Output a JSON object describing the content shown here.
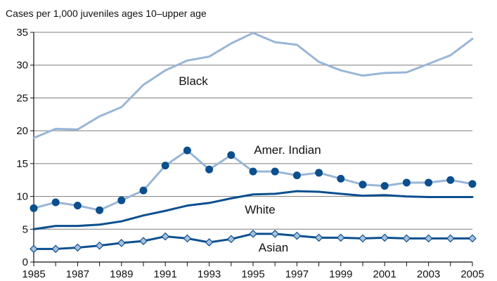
{
  "chart_data": {
    "type": "line",
    "ylabel": "Cases per 1,000 juveniles ages 10–upper age",
    "x": [
      1985,
      1986,
      1987,
      1988,
      1989,
      1990,
      1991,
      1992,
      1993,
      1994,
      1995,
      1996,
      1997,
      1998,
      1999,
      2000,
      2001,
      2002,
      2003,
      2004,
      2005
    ],
    "x_tick_labels": [
      "1985",
      "1987",
      "1989",
      "1991",
      "1993",
      "1995",
      "1997",
      "1999",
      "2001",
      "2003",
      "2005"
    ],
    "y_tick_labels": [
      "0",
      "5",
      "10",
      "15",
      "20",
      "25",
      "30",
      "35"
    ],
    "ylim": [
      0,
      35
    ],
    "xlim": [
      1985,
      2005
    ],
    "grid": "horizontal",
    "series": [
      {
        "name": "Black",
        "color": "#99b6d6",
        "marker": "none",
        "values": [
          18.9,
          20.3,
          20.2,
          22.2,
          23.6,
          27.0,
          29.2,
          30.7,
          31.3,
          33.3,
          34.9,
          33.5,
          33.1,
          30.5,
          29.2,
          28.4,
          28.8,
          28.9,
          30.2,
          31.5,
          34.0
        ]
      },
      {
        "name": "Amer. Indian",
        "color": "#99b6d6",
        "marker_color": "#0b4f8e",
        "marker": "circle",
        "values": [
          8.2,
          9.1,
          8.6,
          7.9,
          9.4,
          10.9,
          14.7,
          17.0,
          14.1,
          16.3,
          13.8,
          13.8,
          13.2,
          13.6,
          12.7,
          11.8,
          11.6,
          12.1,
          12.1,
          12.5,
          11.9
        ]
      },
      {
        "name": "White",
        "color": "#0b4f8e",
        "marker": "none",
        "values": [
          5.0,
          5.5,
          5.5,
          5.7,
          6.2,
          7.1,
          7.8,
          8.6,
          9.0,
          9.7,
          10.3,
          10.4,
          10.8,
          10.7,
          10.4,
          10.1,
          10.2,
          10.0,
          9.9,
          9.9,
          9.9
        ]
      },
      {
        "name": "Asian",
        "color": "#0b4f8e",
        "marker": "diamond",
        "marker_color": "#a7c1dd",
        "values": [
          2.0,
          2.0,
          2.2,
          2.5,
          2.9,
          3.2,
          3.9,
          3.6,
          3.0,
          3.5,
          4.3,
          4.3,
          4.0,
          3.7,
          3.7,
          3.6,
          3.7,
          3.6,
          3.6,
          3.6,
          3.6
        ]
      }
    ]
  }
}
